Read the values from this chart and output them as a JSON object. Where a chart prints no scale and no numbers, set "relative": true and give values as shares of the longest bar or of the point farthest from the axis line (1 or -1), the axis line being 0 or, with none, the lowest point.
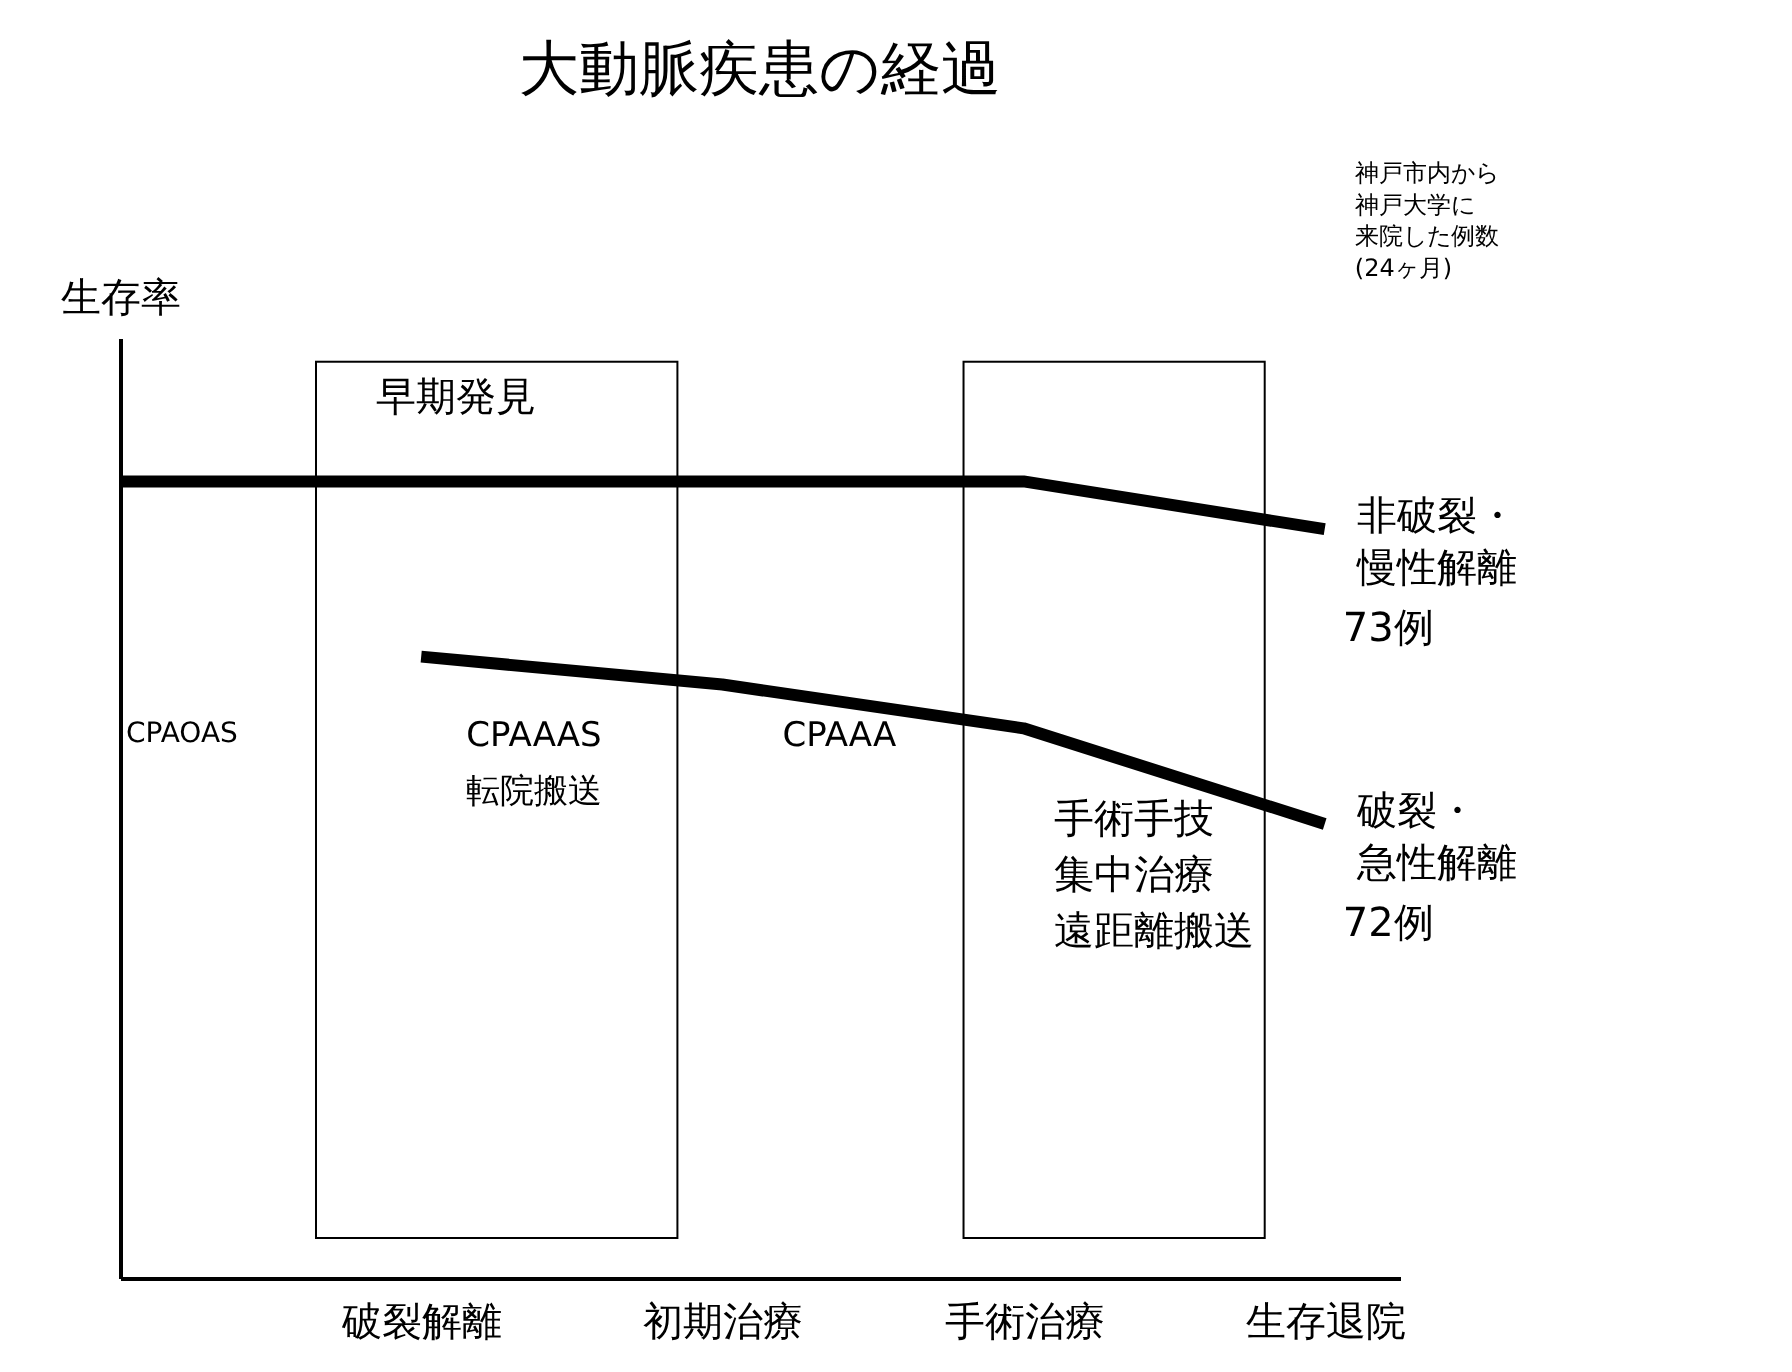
{
  "chart_data": {
    "type": "line",
    "relative": true,
    "title": "大動脈疾患の経過",
    "ylabel": "生存率",
    "categories": [
      null,
      "破裂解離",
      "初期治療",
      "手術治療",
      "生存退院"
    ],
    "series": [
      {
        "name": "非破裂・慢性解離",
        "color": "#000000",
        "values": [
          1,
          1,
          1,
          1,
          0.94
        ]
      },
      {
        "name": "破裂・急性解離",
        "color": "#000000",
        "values": [
          null,
          0.78,
          0.745,
          0.69,
          0.57
        ]
      }
    ],
    "annotations": [
      "CPAOAS",
      "CPAAAS",
      "転院搬送",
      "CPAAA",
      "手術手技",
      "集中治療",
      "遠距離搬送",
      "早期発見",
      "73例",
      "72例",
      "神戸市内から",
      "神戸大学に",
      "来院した例数",
      "(24ヶ月)"
    ],
    "legend": false,
    "grid": false,
    "marker": "none",
    "line_style": "solid"
  }
}
